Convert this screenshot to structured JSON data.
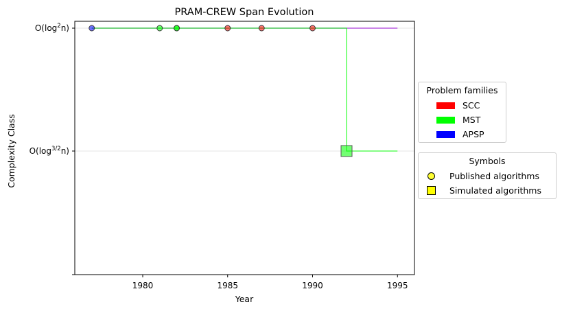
{
  "chart_data": {
    "type": "scatter",
    "title": "PRAM-CREW Span Evolution",
    "xlabel": "Year",
    "ylabel": "Complexity Class",
    "xlim": [
      1976,
      1996
    ],
    "x_ticks": [
      1980,
      1985,
      1990,
      1995
    ],
    "y_ticks": [
      {
        "label": "O(log²n)",
        "pre": "O(log",
        "sup": "2",
        "post": "n)",
        "level": 2
      },
      {
        "label": "O(log³ᐟ²n)",
        "pre": "O(log",
        "sup": "3/2",
        "post": "n)",
        "level": 1
      },
      {
        "label": "",
        "level": 0
      }
    ],
    "grid": "horizontal",
    "series": [
      {
        "name": "SCC",
        "color": "#ff0000",
        "points": [
          {
            "x": 1985,
            "level": 2,
            "kind": "published"
          },
          {
            "x": 1987,
            "level": 2,
            "kind": "published"
          },
          {
            "x": 1990,
            "level": 2,
            "kind": "published"
          }
        ]
      },
      {
        "name": "MST",
        "color": "#00ff00",
        "points": [
          {
            "x": 1981,
            "level": 2,
            "kind": "published"
          },
          {
            "x": 1982,
            "level": 2,
            "kind": "published"
          },
          {
            "x": 1982,
            "level": 2,
            "kind": "published"
          },
          {
            "x": 1992,
            "level": 1,
            "kind": "simulated"
          }
        ]
      },
      {
        "name": "APSP",
        "color": "#0000ff",
        "points": [
          {
            "x": 1977,
            "level": 2,
            "kind": "published"
          }
        ]
      }
    ],
    "lines": [
      {
        "color": "#9400d3",
        "points": [
          [
            1977,
            2
          ],
          [
            1995,
            2
          ]
        ]
      },
      {
        "color": "#00ff00",
        "points": [
          [
            1977,
            2
          ],
          [
            1992,
            2
          ],
          [
            1992,
            1
          ],
          [
            1995,
            1
          ]
        ]
      }
    ],
    "legend_families": {
      "title": "Problem families",
      "placement": "right",
      "items": [
        {
          "label": "SCC",
          "color": "#ff0000"
        },
        {
          "label": "MST",
          "color": "#00ff00"
        },
        {
          "label": "APSP",
          "color": "#0000ff"
        }
      ]
    },
    "legend_symbols": {
      "title": "Symbols",
      "placement": "right",
      "items": [
        {
          "label": "Published algorithms",
          "shape": "circle"
        },
        {
          "label": "Simulated algorithms",
          "shape": "square"
        }
      ]
    }
  }
}
